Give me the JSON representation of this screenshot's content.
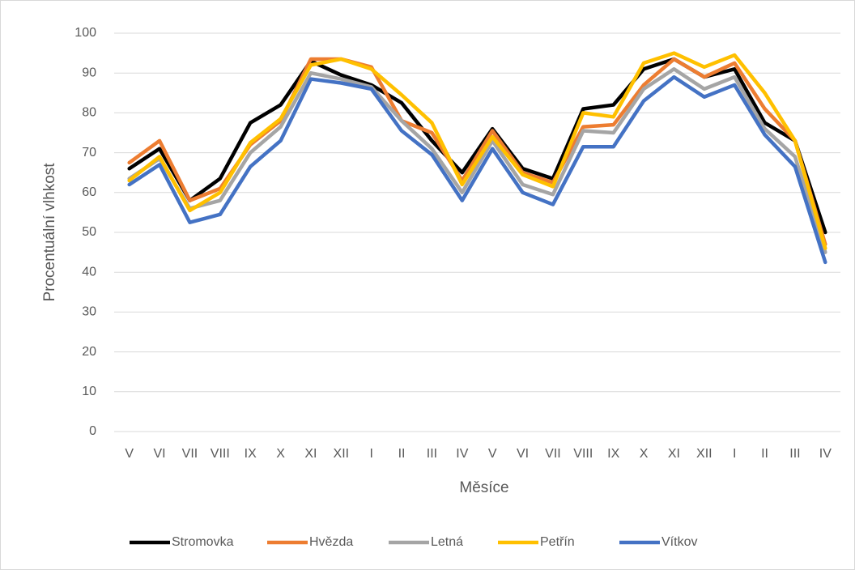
{
  "chart_data": {
    "type": "line",
    "categories": [
      "V",
      "VI",
      "VII",
      "VIII",
      "IX",
      "X",
      "XI",
      "XII",
      "I",
      "II",
      "III",
      "IV",
      "V",
      "VI",
      "VII",
      "VIII",
      "IX",
      "X",
      "XI",
      "XII",
      "I",
      "II",
      "III",
      "IV"
    ],
    "series": [
      {
        "name": "Stromovka",
        "color": "#000000",
        "values": [
          66,
          71,
          58,
          63.5,
          77.5,
          82,
          93,
          89.5,
          87,
          82.5,
          73,
          65,
          76,
          66,
          63.5,
          81,
          82,
          91,
          93.5,
          89,
          91,
          77.5,
          73,
          50
        ]
      },
      {
        "name": "Hvězda",
        "color": "#ed7d31",
        "values": [
          67.5,
          73,
          58,
          61,
          72,
          78,
          93.5,
          93.5,
          91.5,
          78,
          75,
          63,
          75.5,
          65,
          62.5,
          76.5,
          77,
          87,
          93.5,
          89,
          92.5,
          81,
          73,
          47
        ]
      },
      {
        "name": "Letná",
        "color": "#a5a5a5",
        "values": [
          63.5,
          68.5,
          56,
          58,
          70,
          76.5,
          90,
          88.5,
          86.5,
          78,
          71,
          60,
          73,
          62,
          59.5,
          75.5,
          75,
          86,
          91,
          86,
          89,
          76,
          69,
          45
        ]
      },
      {
        "name": "Petřín",
        "color": "#ffc000",
        "values": [
          63,
          69,
          55.5,
          60,
          72.5,
          78.5,
          92,
          93.5,
          91,
          84.5,
          77.5,
          62,
          74,
          64.5,
          61.5,
          80,
          79,
          92.5,
          95,
          91.5,
          94.5,
          85,
          73,
          46
        ]
      },
      {
        "name": "Vítkov",
        "color": "#4472c4",
        "values": [
          62,
          67,
          52.5,
          54.5,
          66.5,
          73,
          88.5,
          87.5,
          86,
          75.5,
          69.5,
          58,
          71,
          60,
          57,
          71.5,
          71.5,
          83,
          89,
          84,
          87,
          74.5,
          66.5,
          42.5
        ]
      }
    ],
    "x_label": "Měsíce",
    "y_label": "Procentuální vlhkost",
    "ylim": [
      0,
      100
    ],
    "yticks": [
      0,
      10,
      20,
      30,
      40,
      50,
      60,
      70,
      80,
      90,
      100
    ],
    "grid": true,
    "legend": "bottom"
  }
}
